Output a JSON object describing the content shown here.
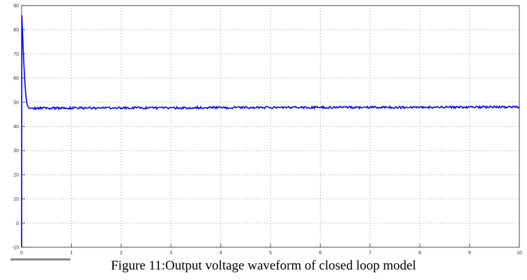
{
  "chart_data": {
    "type": "line",
    "title": "",
    "xlabel": "",
    "ylabel": "",
    "xlim": [
      0,
      10
    ],
    "ylim": [
      -10,
      90
    ],
    "xticks": [
      "0",
      "1",
      "2",
      "3",
      "4",
      "5",
      "6",
      "7",
      "8",
      "9",
      "10"
    ],
    "yticks": [
      "-10",
      "0",
      "10",
      "20",
      "30",
      "40",
      "50",
      "60",
      "70",
      "80",
      "90"
    ],
    "grid": true,
    "series": [
      {
        "color": "#0000ff",
        "x": [
          0,
          0.005,
          0.02,
          0.04,
          0.06,
          0.08,
          0.1,
          0.12,
          0.15,
          0.2,
          1,
          2,
          3,
          4,
          5,
          6,
          7,
          8,
          9,
          10
        ],
        "y": [
          -10,
          86,
          78,
          68,
          60,
          54,
          50,
          48.5,
          47.5,
          47.5,
          47.6,
          47.7,
          47.7,
          47.8,
          47.8,
          47.9,
          47.9,
          47.9,
          48,
          48
        ]
      }
    ]
  },
  "caption": "Figure 11:Output voltage waveform of closed loop model"
}
